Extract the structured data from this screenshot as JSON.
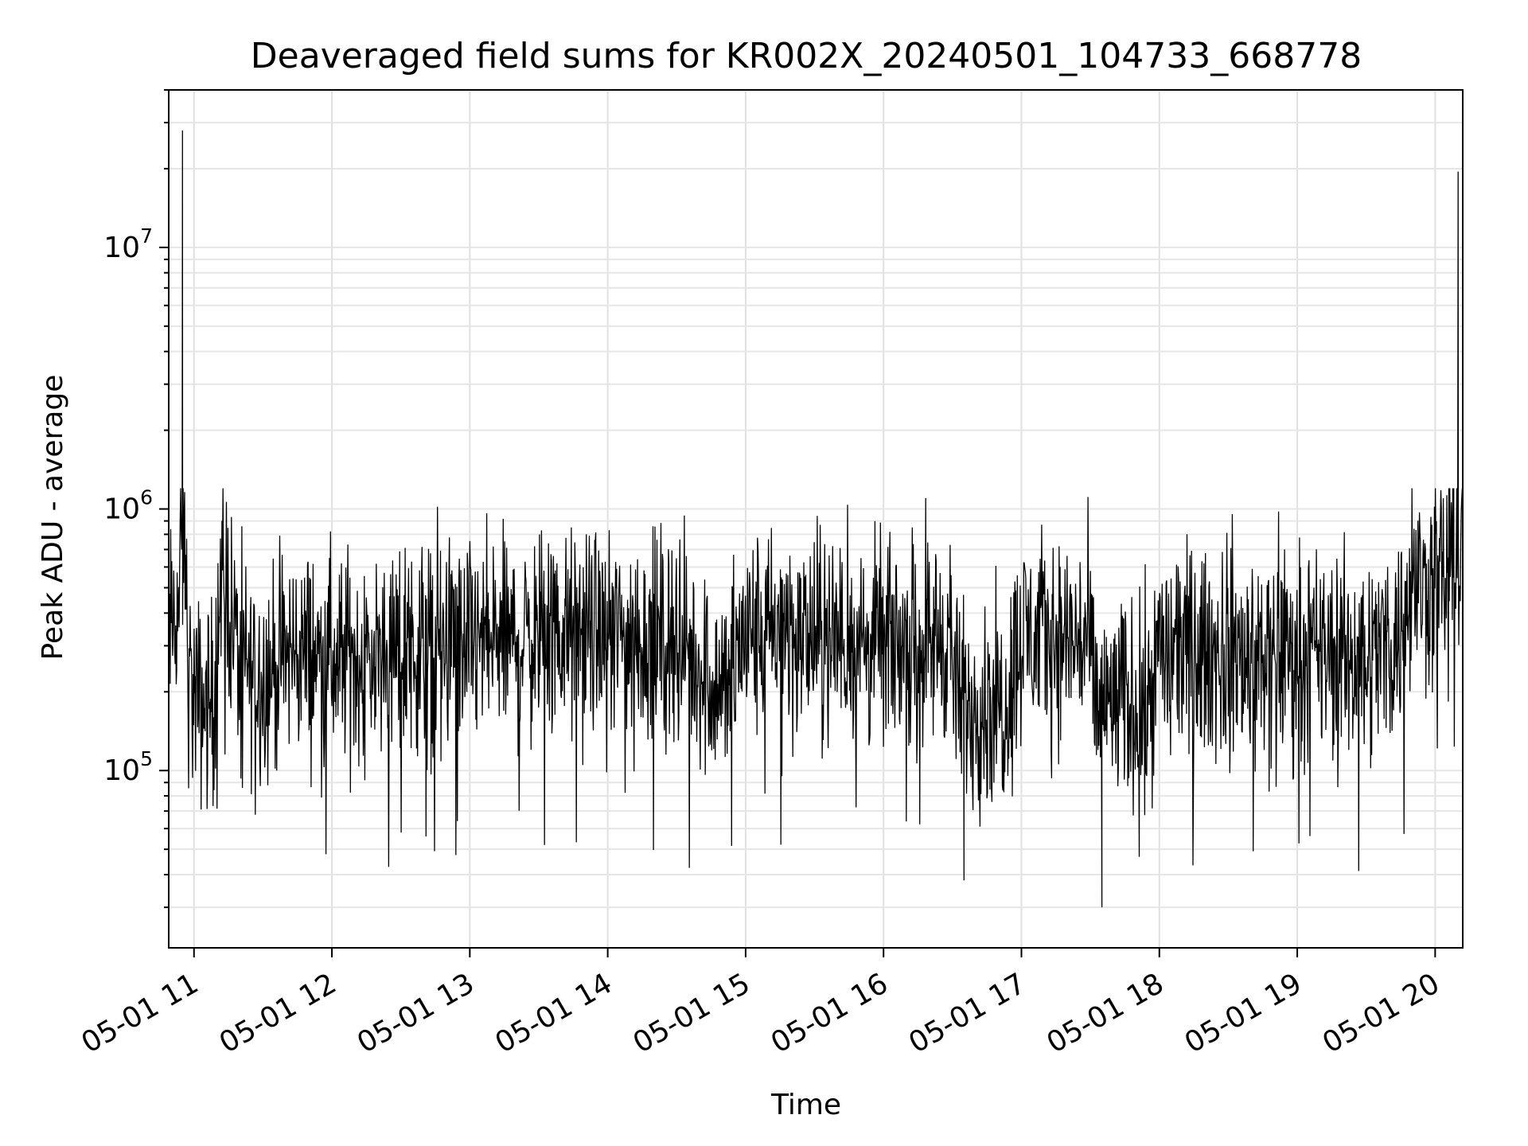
{
  "chart_data": {
    "type": "line",
    "title": "Deaveraged field sums for KR002X_20240501_104733_668778",
    "xlabel": "Time",
    "ylabel": "Peak ADU - average",
    "yscale": "log",
    "ylim": [
      21000,
      40000000
    ],
    "xlim": [
      "2024-05-01 10:49",
      "2024-05-01 20:12"
    ],
    "grid": true,
    "x_tick_labels": [
      "05-01 11",
      "05-01 12",
      "05-01 13",
      "05-01 14",
      "05-01 15",
      "05-01 16",
      "05-01 17",
      "05-01 18",
      "05-01 19",
      "05-01 20"
    ],
    "y_tick_labels": [
      {
        "base": "10",
        "exp": "5",
        "value": 100000
      },
      {
        "base": "10",
        "exp": "6",
        "value": 1000000
      },
      {
        "base": "10",
        "exp": "7",
        "value": 10000000
      }
    ],
    "line_color": "#000000",
    "series": [
      {
        "name": "",
        "x": [
          "2024-05-01 10:49",
          "2024-05-01 10:54",
          "2024-05-01 10:55",
          "2024-05-01 10:57",
          "2024-05-01 11:00",
          "2024-05-01 11:07",
          "2024-05-01 11:13",
          "2024-05-01 11:20",
          "2024-05-01 11:30",
          "2024-05-01 11:45",
          "2024-05-01 12:00",
          "2024-05-01 12:30",
          "2024-05-01 13:00",
          "2024-05-01 13:30",
          "2024-05-01 14:00",
          "2024-05-01 14:30",
          "2024-05-01 14:50",
          "2024-05-01 15:00",
          "2024-05-01 15:30",
          "2024-05-01 16:00",
          "2024-05-01 16:30",
          "2024-05-01 16:35",
          "2024-05-01 17:00",
          "2024-05-01 17:30",
          "2024-05-01 17:35",
          "2024-05-01 18:00",
          "2024-05-01 18:30",
          "2024-05-01 19:00",
          "2024-05-01 19:30",
          "2024-05-01 19:45",
          "2024-05-01 19:50",
          "2024-05-01 20:00",
          "2024-05-01 20:07",
          "2024-05-01 20:10",
          "2024-05-01 20:12"
        ],
        "y": [
          320000,
          450000,
          28000000,
          250000,
          190000,
          130000,
          600000,
          250000,
          230000,
          290000,
          260000,
          280000,
          300000,
          320000,
          330000,
          310000,
          200000,
          330000,
          320000,
          300000,
          320000,
          38000,
          330000,
          310000,
          30000,
          290000,
          270000,
          280000,
          270000,
          330000,
          520000,
          500000,
          600000,
          19500000,
          650000
        ]
      }
    ],
    "value_range_typical": [
      100000,
      1000000
    ]
  }
}
